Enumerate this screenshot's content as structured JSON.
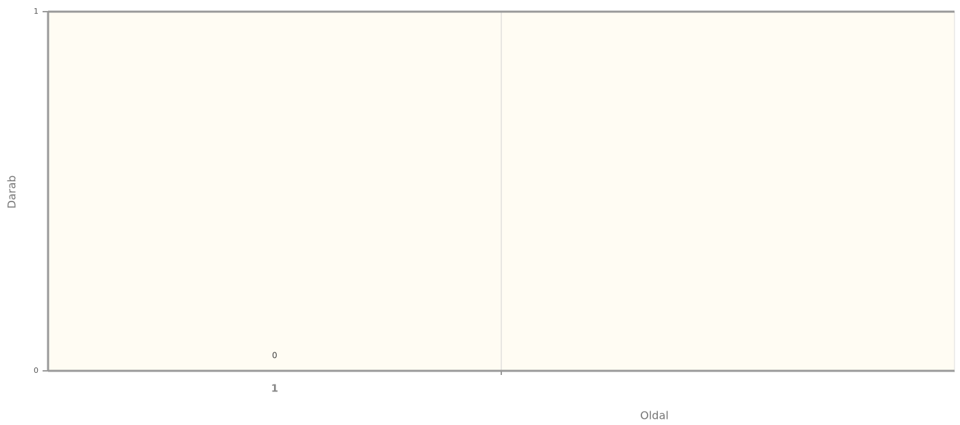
{
  "chart_data": {
    "type": "bar",
    "x_label": "Oldal",
    "y_label": "Darab",
    "categories": [
      "1",
      null
    ],
    "values": [
      0,
      null
    ],
    "color": "#6a8fc8",
    "ylim": [
      0,
      1
    ],
    "yticks": [
      0,
      1
    ],
    "background": "#fffcf3"
  }
}
